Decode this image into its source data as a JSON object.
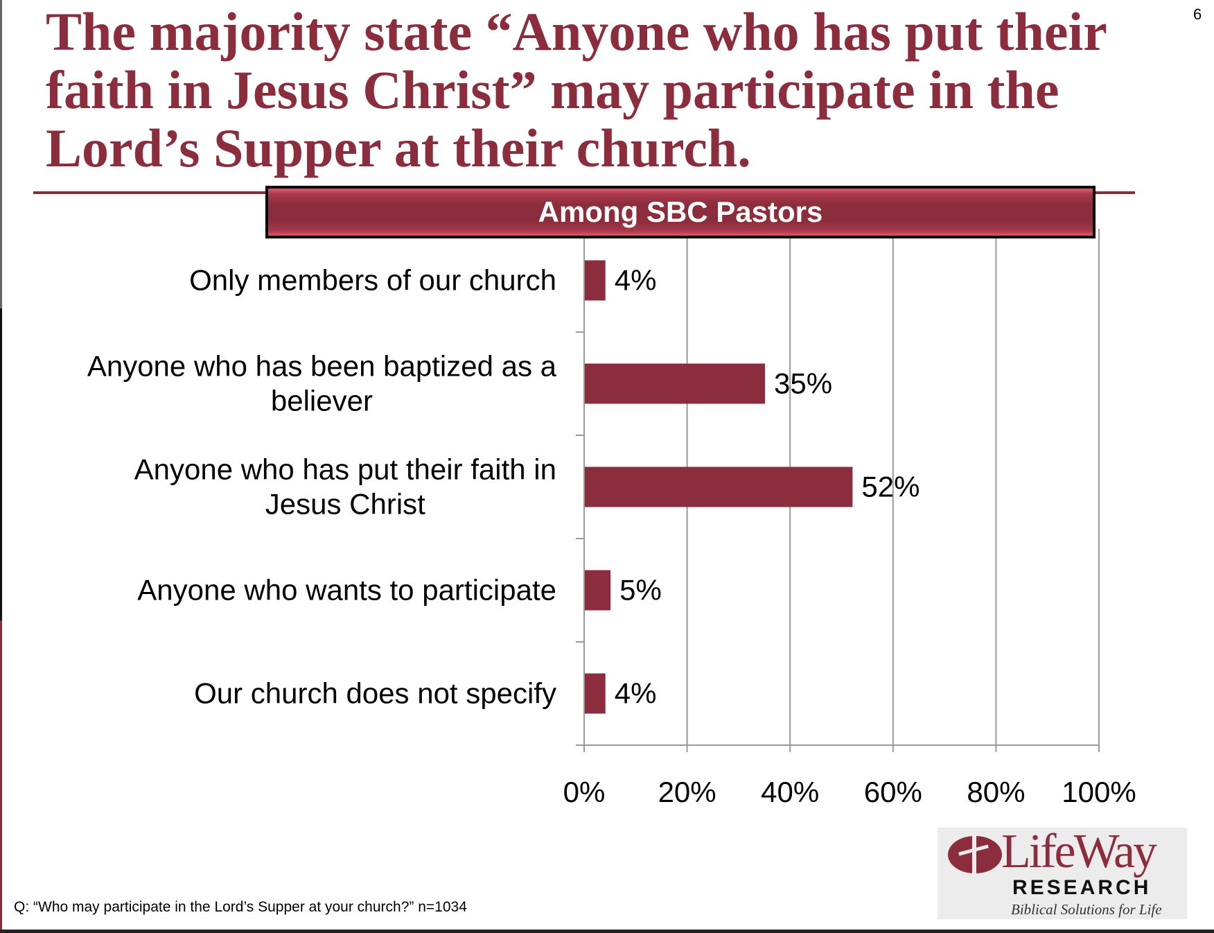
{
  "page_number": "6",
  "title": "The majority state “Anyone who has put their faith in Jesus Christ” may participate in the Lord’s Supper at their church.",
  "footer": "Q: “Who may participate in the Lord’s Supper at your church?”  n=1034",
  "logo": {
    "name": "LifeWay",
    "sub": "RESEARCH",
    "tagline": "Biblical Solutions for Life"
  },
  "chart_data": {
    "type": "bar",
    "orientation": "horizontal",
    "title": "Among SBC Pastors",
    "categories": [
      [
        "Only members of our church"
      ],
      [
        "Anyone who has been baptized as a",
        "believer"
      ],
      [
        "Anyone who has put their faith in",
        "Jesus Christ"
      ],
      [
        "Anyone who wants to participate"
      ],
      [
        "Our church does not specify"
      ]
    ],
    "values": [
      4,
      35,
      52,
      5,
      4
    ],
    "data_labels": [
      "4%",
      "35%",
      "52%",
      "5%",
      "4%"
    ],
    "xlim": [
      0,
      100
    ],
    "x_ticks": [
      0,
      20,
      40,
      60,
      80,
      100
    ],
    "x_tick_labels": [
      "0%",
      "20%",
      "40%",
      "60%",
      "80%",
      "100%"
    ],
    "grid": true,
    "bar_color": "#8b2d3c"
  }
}
